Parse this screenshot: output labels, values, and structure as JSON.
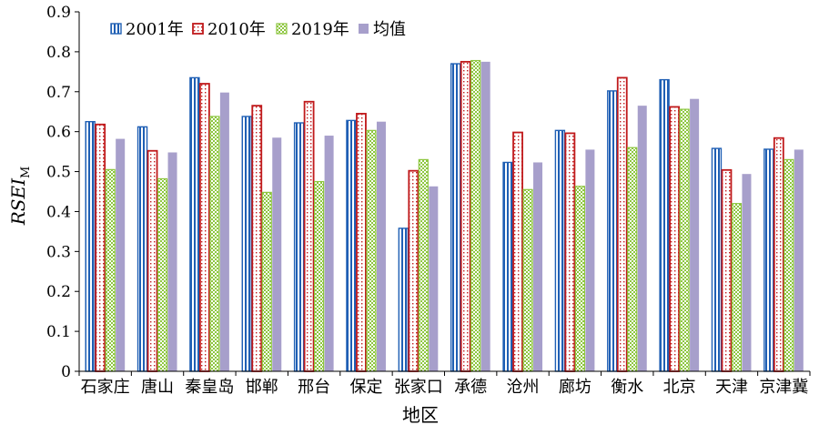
{
  "chart_data": {
    "type": "bar",
    "title": "",
    "xlabel": "地区",
    "ylabel": "RSEI",
    "ylabel_sub": "M",
    "ylim": [
      0,
      0.9
    ],
    "yticks": [
      "0",
      "0.1",
      "0.2",
      "0.3",
      "0.4",
      "0.5",
      "0.6",
      "0.7",
      "0.8",
      "0.9"
    ],
    "grid": false,
    "legend_position": "top-left",
    "categories": [
      "石家庄",
      "唐山",
      "秦皇岛",
      "邯郸",
      "邢台",
      "保定",
      "张家口",
      "承德",
      "沧州",
      "廊坊",
      "衡水",
      "北京",
      "天津",
      "京津冀"
    ],
    "series": [
      {
        "name": "2001年",
        "color": "#1f5fb4",
        "pattern": "vertical-stripes",
        "values": [
          0.625,
          0.612,
          0.735,
          0.638,
          0.622,
          0.628,
          0.358,
          0.77,
          0.523,
          0.603,
          0.702,
          0.73,
          0.558,
          0.556
        ]
      },
      {
        "name": "2010年",
        "color": "#c0191b",
        "pattern": "dotted-outline",
        "values": [
          0.618,
          0.552,
          0.72,
          0.665,
          0.675,
          0.645,
          0.502,
          0.775,
          0.598,
          0.596,
          0.735,
          0.662,
          0.504,
          0.584
        ]
      },
      {
        "name": "2019年",
        "color": "#8dc63f",
        "pattern": "checker",
        "values": [
          0.505,
          0.482,
          0.638,
          0.448,
          0.475,
          0.603,
          0.53,
          0.778,
          0.455,
          0.463,
          0.56,
          0.656,
          0.42,
          0.53
        ]
      },
      {
        "name": "均值",
        "color": "#a79fcb",
        "pattern": "solid",
        "values": [
          0.582,
          0.548,
          0.698,
          0.585,
          0.59,
          0.625,
          0.463,
          0.775,
          0.523,
          0.555,
          0.665,
          0.682,
          0.494,
          0.555
        ]
      }
    ]
  }
}
